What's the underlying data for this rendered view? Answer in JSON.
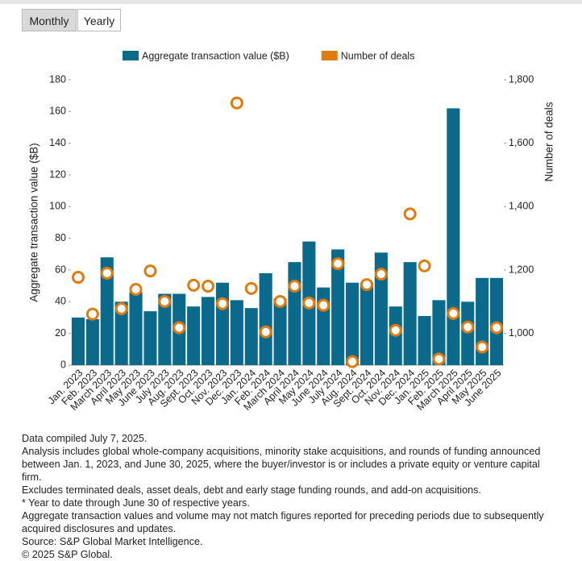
{
  "buttons": [
    "Monthly",
    "Yearly"
  ],
  "chart_data": {
    "type": "bar",
    "categories": [
      "Jan. 2023",
      "Feb. 2023",
      "March 2023",
      "April 2023",
      "May 2023",
      "June 2023",
      "July 2023",
      "Aug. 2023",
      "Sept. 2023",
      "Oct. 2023",
      "Nov. 2023",
      "Dec. 2023",
      "Jan. 2024",
      "Feb. 2024",
      "March 2024",
      "April 2024",
      "May 2024",
      "June 2024",
      "July 2024",
      "Aug. 2024",
      "Sept. 2024",
      "Oct. 2024",
      "Nov. 2024",
      "Dec. 2024",
      "Jan. 2025",
      "Feb. 2025",
      "March 2025",
      "April 2025",
      "May 2025",
      "June 2025"
    ],
    "series": [
      {
        "name": "Aggregate transaction value ($B)",
        "color": "#0b6a8b",
        "values": [
          30,
          29,
          68,
          40,
          46,
          34,
          45,
          45,
          37,
          43,
          52,
          41,
          36,
          58,
          42,
          65,
          78,
          49,
          73,
          52,
          52,
          71,
          37,
          65,
          31,
          41,
          162,
          40,
          55,
          55
        ]
      },
      {
        "name": "Number of deals",
        "color": "#e07b0e",
        "axis": "y2",
        "values": [
          1177,
          1061,
          1190,
          1078,
          1139,
          1197,
          1101,
          1018,
          1152,
          1149,
          1094,
          1727,
          1142,
          1005,
          1101,
          1149,
          1096,
          1089,
          1220,
          911,
          1154,
          1187,
          1010,
          1377,
          1213,
          919,
          1063,
          1020,
          957,
          1018
        ]
      }
    ],
    "ylabel": "Aggregate transaction value ($B)",
    "y2label": "Number of deals",
    "ylim": [
      0,
      180
    ],
    "yticks": [
      0,
      20,
      40,
      60,
      80,
      100,
      120,
      140,
      160,
      180
    ],
    "y2lim": [
      900,
      1800
    ],
    "y2ticks": [
      {
        "value": 1000,
        "label": "1,000"
      },
      {
        "value": 1200,
        "label": "1,200"
      },
      {
        "value": 1400,
        "label": "1,400"
      },
      {
        "value": 1600,
        "label": "1,600"
      },
      {
        "value": 1800,
        "label": "1,800"
      }
    ]
  },
  "footnotes": [
    "Data compiled July 7, 2025.",
    "Analysis includes global whole-company acquisitions, minority stake acquisitions, and rounds of funding announced between Jan. 1, 2023, and June 30, 2025, where the buyer/investor is or includes a private equity or venture capital firm.",
    "Excludes terminated deals, asset deals, debt and early stage funding rounds, and add-on acquisitions.",
    "* Year to date through June 30 of respective years.",
    "Aggregate transaction values and volume may not match figures reported for preceding periods due to subsequently acquired disclosures and updates.",
    "Source: S&P Global Market Intelligence.",
    "© 2025 S&P Global."
  ]
}
